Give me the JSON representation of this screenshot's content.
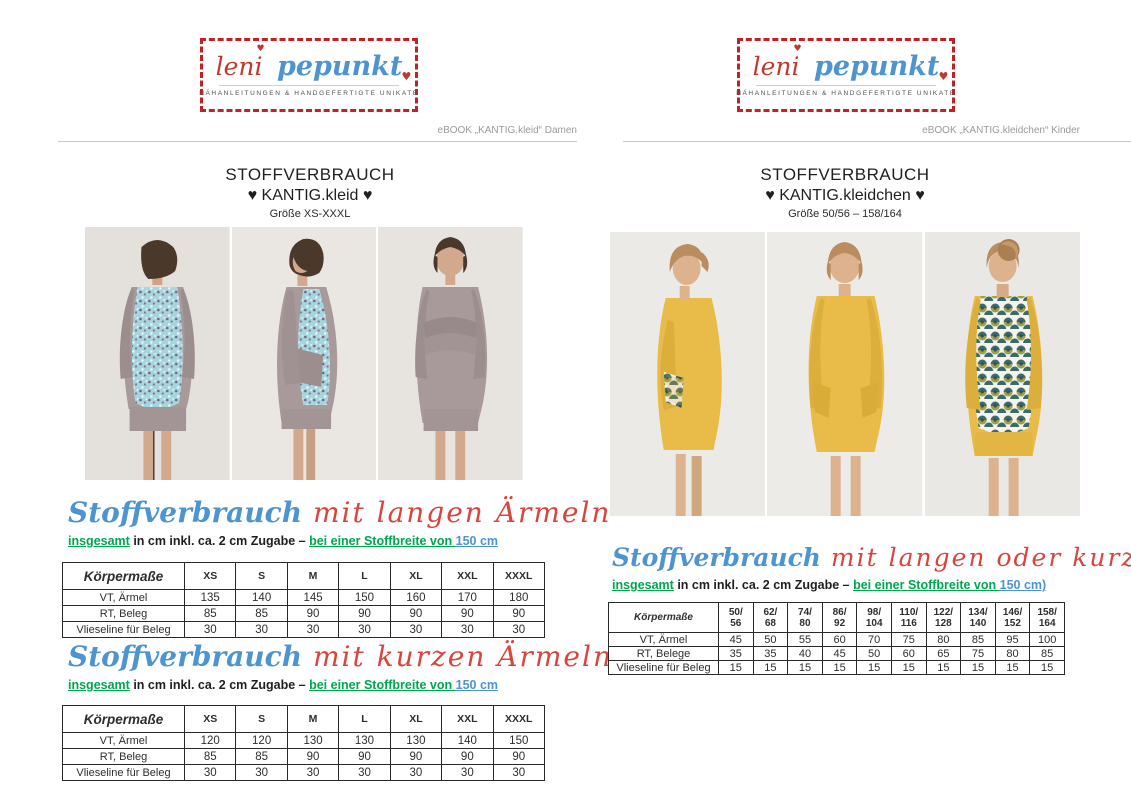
{
  "brand": {
    "name_part1": "leni",
    "name_part2": "pepunkt",
    "heart": "♥",
    "tagline": "NÄHANLEITUNGEN & HANDGEFERTIGTE UNIKATE"
  },
  "colors": {
    "brand_red": "#c32126",
    "brand_blue": "#4d94d0",
    "script_red": "#d8453c",
    "note_green": "#00a650",
    "dress_taupe": "#a89a9a",
    "dress_yellow": "#e9bc49"
  },
  "left": {
    "ebook_label": "eBOOK „KANTIG.kleid“ Damen",
    "title": "STOFFVERBRAUCH",
    "title_sub": "♥ KANTIG.kleid ♥",
    "size_range": "Größe XS-XXXL",
    "sections": [
      {
        "heading_blue": "Stoffverbrauch",
        "heading_red": " mit langen Ärmeln",
        "note_green1": "insgesamt",
        "note_black": " in cm inkl. ca. 2 cm Zugabe – ",
        "note_green2": "bei einer Stoffbreite von ",
        "note_blue": "150 cm",
        "table": {
          "corner": "Körpermaße",
          "columns": [
            "XS",
            "S",
            "M",
            "L",
            "XL",
            "XXL",
            "XXXL"
          ],
          "rows": [
            {
              "label": "VT, Ärmel",
              "values": [
                "135",
                "140",
                "145",
                "150",
                "160",
                "170",
                "180"
              ]
            },
            {
              "label": "RT, Beleg",
              "values": [
                "85",
                "85",
                "90",
                "90",
                "90",
                "90",
                "90"
              ]
            },
            {
              "label": "Vlieseline für Beleg",
              "values": [
                "30",
                "30",
                "30",
                "30",
                "30",
                "30",
                "30"
              ]
            }
          ]
        }
      },
      {
        "heading_blue": "Stoffverbrauch",
        "heading_red": " mit kurzen Ärmeln",
        "note_green1": "insgesamt",
        "note_black": " in cm inkl. ca. 2 cm Zugabe – ",
        "note_green2": "bei einer Stoffbreite von ",
        "note_blue": "150 cm",
        "table": {
          "corner": "Körpermaße",
          "columns": [
            "XS",
            "S",
            "M",
            "L",
            "XL",
            "XXL",
            "XXXL"
          ],
          "rows": [
            {
              "label": "VT, Ärmel",
              "values": [
                "120",
                "120",
                "130",
                "130",
                "130",
                "140",
                "150"
              ]
            },
            {
              "label": "RT, Beleg",
              "values": [
                "85",
                "85",
                "90",
                "90",
                "90",
                "90",
                "90"
              ]
            },
            {
              "label": "Vlieseline für Beleg",
              "values": [
                "30",
                "30",
                "30",
                "30",
                "30",
                "30",
                "30"
              ]
            }
          ]
        }
      }
    ]
  },
  "right": {
    "ebook_label": "eBOOK „KANTIG.kleidchen“ Kinder",
    "title": "STOFFVERBRAUCH",
    "title_sub": "♥ KANTIG.kleidchen ♥",
    "size_range": "Größe 50/56 – 158/164",
    "sections": [
      {
        "heading_blue": "Stoffverbrauch",
        "heading_red": " mit langen oder kurzen Ärmeln",
        "note_green1": "insgesamt",
        "note_black": " in cm inkl. ca. 2 cm Zugabe – ",
        "note_green2": "bei einer Stoffbreite von ",
        "note_blue": "150 cm)",
        "table": {
          "corner": "Körpermaße",
          "columns": [
            "50/56",
            "62/68",
            "74/80",
            "86/92",
            "98/104",
            "110/116",
            "122/128",
            "134/140",
            "146/152",
            "158/164"
          ],
          "rows": [
            {
              "label": "VT, Ärmel",
              "values": [
                "45",
                "50",
                "55",
                "60",
                "70",
                "75",
                "80",
                "85",
                "95",
                "100"
              ]
            },
            {
              "label": "RT, Belege",
              "values": [
                "35",
                "35",
                "40",
                "45",
                "50",
                "60",
                "65",
                "75",
                "80",
                "85"
              ]
            },
            {
              "label": "Vlieseline für Beleg",
              "values": [
                "15",
                "15",
                "15",
                "15",
                "15",
                "15",
                "15",
                "15",
                "15",
                "15"
              ]
            }
          ]
        }
      }
    ]
  }
}
